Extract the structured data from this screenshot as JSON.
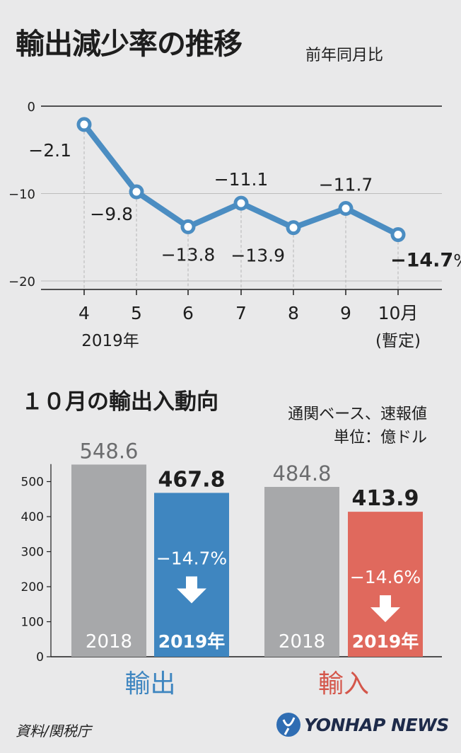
{
  "header": {
    "title": "輸出減少率の推移",
    "subtitle": "前年同月比"
  },
  "section2": {
    "title": "１０月の輸出入動向",
    "note_line1": "通関ベース、速報値",
    "note_line2": "単位：億ドル"
  },
  "footer": {
    "source": "資料/関税庁",
    "logo_text": "YONHAP NEWS"
  },
  "colors": {
    "line": "#4b8dc2",
    "export": "#3f86c0",
    "import": "#e0695d",
    "prev": "#a7a8aa",
    "import_label": "#d4564a"
  },
  "chart_data": [
    {
      "type": "line",
      "x": [
        "4",
        "5",
        "6",
        "7",
        "8",
        "9",
        "10月"
      ],
      "x_sublabels": [
        "2019年",
        "",
        "",
        "",
        "",
        "",
        "(暫定)"
      ],
      "values": [
        -2.1,
        -9.8,
        -13.8,
        -11.1,
        -13.9,
        -11.7,
        -14.7
      ],
      "value_labels": [
        "−2.1",
        "−9.8",
        "−13.8",
        "−11.1",
        "−13.9",
        "−11.7",
        "−14.7"
      ],
      "unit": "%",
      "yticks": [
        0,
        -10,
        -20
      ],
      "ylim": [
        -20,
        0
      ],
      "grid": true
    },
    {
      "type": "bar",
      "groups": [
        {
          "name": "輸出",
          "bars": [
            {
              "label": "2018",
              "value": 548.6,
              "value_label": "548.6"
            },
            {
              "label": "2019年",
              "value": 467.8,
              "value_label": "467.8",
              "change": "−14.7%"
            }
          ]
        },
        {
          "name": "輸入",
          "bars": [
            {
              "label": "2018",
              "value": 484.8,
              "value_label": "484.8"
            },
            {
              "label": "2019年",
              "value": 413.9,
              "value_label": "413.9",
              "change": "−14.6%"
            }
          ]
        }
      ],
      "yticks": [
        0,
        100,
        200,
        300,
        400,
        500
      ],
      "ylim": [
        0,
        550
      ]
    }
  ]
}
